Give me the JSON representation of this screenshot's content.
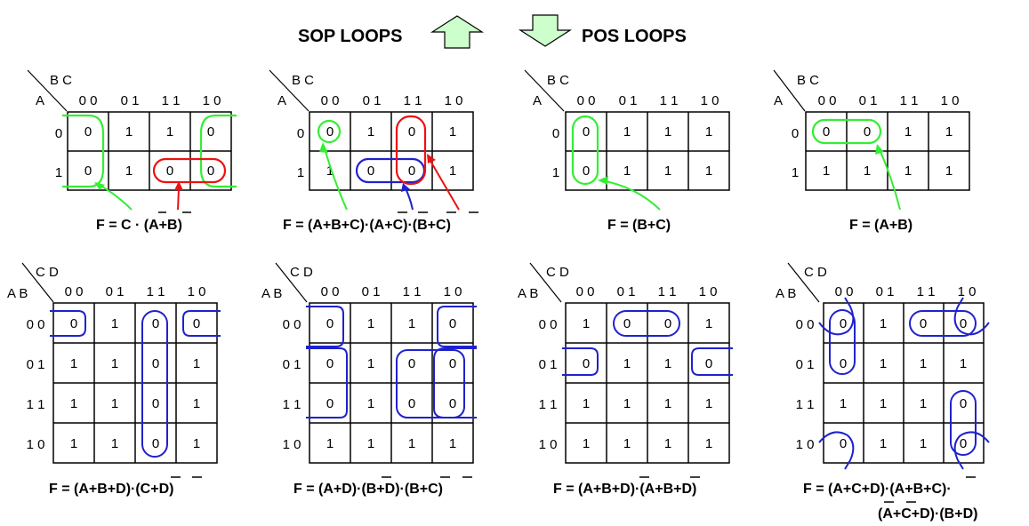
{
  "header": {
    "sop_label": "SOP LOOPS",
    "pos_label": "POS LOOPS"
  },
  "colors": {
    "green": "#33ee33",
    "red": "#ee1111",
    "blue": "#1f22cc",
    "arrow_fill": "#ccffcc"
  },
  "maps": [
    {
      "row_var": "A",
      "col_var": "B C",
      "col_headers": [
        "0 0",
        "0 1",
        "1 1",
        "1 0"
      ],
      "row_headers": [
        "0",
        "1"
      ],
      "cells": [
        [
          "0",
          "1",
          "1",
          "0"
        ],
        [
          "0",
          "1",
          "0",
          "0"
        ]
      ],
      "formula": "F = C · (A+B)"
    },
    {
      "row_var": "A",
      "col_var": "B C",
      "col_headers": [
        "0 0",
        "0 1",
        "1 1",
        "1 0"
      ],
      "row_headers": [
        "0",
        "1"
      ],
      "cells": [
        [
          "0",
          "1",
          "0",
          "1"
        ],
        [
          "1",
          "0",
          "0",
          "1"
        ]
      ],
      "formula": "F = (A+B+C)·(A+C)·(B+C)"
    },
    {
      "row_var": "A",
      "col_var": "B C",
      "col_headers": [
        "0 0",
        "0 1",
        "1 1",
        "1 0"
      ],
      "row_headers": [
        "0",
        "1"
      ],
      "cells": [
        [
          "0",
          "1",
          "1",
          "1"
        ],
        [
          "0",
          "1",
          "1",
          "1"
        ]
      ],
      "formula": "F = (B+C)"
    },
    {
      "row_var": "A",
      "col_var": "B C",
      "col_headers": [
        "0 0",
        "0 1",
        "1 1",
        "1 0"
      ],
      "row_headers": [
        "0",
        "1"
      ],
      "cells": [
        [
          "0",
          "0",
          "1",
          "1"
        ],
        [
          "1",
          "1",
          "1",
          "1"
        ]
      ],
      "formula": "F = (A+B)"
    },
    {
      "row_var": "A B",
      "col_var": "C D",
      "col_headers": [
        "0 0",
        "0 1",
        "1 1",
        "1 0"
      ],
      "row_headers": [
        "0 0",
        "0 1",
        "1 1",
        "1 0"
      ],
      "cells": [
        [
          "0",
          "1",
          "0",
          "0"
        ],
        [
          "1",
          "1",
          "0",
          "1"
        ],
        [
          "1",
          "1",
          "0",
          "1"
        ],
        [
          "1",
          "1",
          "0",
          "1"
        ]
      ],
      "formula": "F = (A+B+D)·(C+D)"
    },
    {
      "row_var": "A B",
      "col_var": "C D",
      "col_headers": [
        "0 0",
        "0 1",
        "1 1",
        "1 0"
      ],
      "row_headers": [
        "0 0",
        "0 1",
        "1 1",
        "1 0"
      ],
      "cells": [
        [
          "0",
          "1",
          "1",
          "0"
        ],
        [
          "0",
          "1",
          "0",
          "0"
        ],
        [
          "0",
          "1",
          "0",
          "0"
        ],
        [
          "1",
          "1",
          "1",
          "1"
        ]
      ],
      "formula": "F = (A+D)·(B+D)·(B+C)"
    },
    {
      "row_var": "A B",
      "col_var": "C D",
      "col_headers": [
        "0 0",
        "0 1",
        "1 1",
        "1 0"
      ],
      "row_headers": [
        "0 0",
        "0 1",
        "1 1",
        "1 0"
      ],
      "cells": [
        [
          "1",
          "0",
          "0",
          "1"
        ],
        [
          "0",
          "1",
          "1",
          "0"
        ],
        [
          "1",
          "1",
          "1",
          "1"
        ],
        [
          "1",
          "1",
          "1",
          "1"
        ]
      ],
      "formula": "F = (A+B+D)·(A+B+D)"
    },
    {
      "row_var": "A B",
      "col_var": "C D",
      "col_headers": [
        "0 0",
        "0 1",
        "1 1",
        "1 0"
      ],
      "row_headers": [
        "0 0",
        "0 1",
        "1 1",
        "1 0"
      ],
      "cells": [
        [
          "0",
          "1",
          "0",
          "0"
        ],
        [
          "0",
          "1",
          "1",
          "1"
        ],
        [
          "1",
          "1",
          "1",
          "0"
        ],
        [
          "0",
          "1",
          "1",
          "0"
        ]
      ],
      "formula": "F = (A+C+D)·(A+B+C)·",
      "formula_line2": "(A+C+D)·(B+D)"
    }
  ]
}
